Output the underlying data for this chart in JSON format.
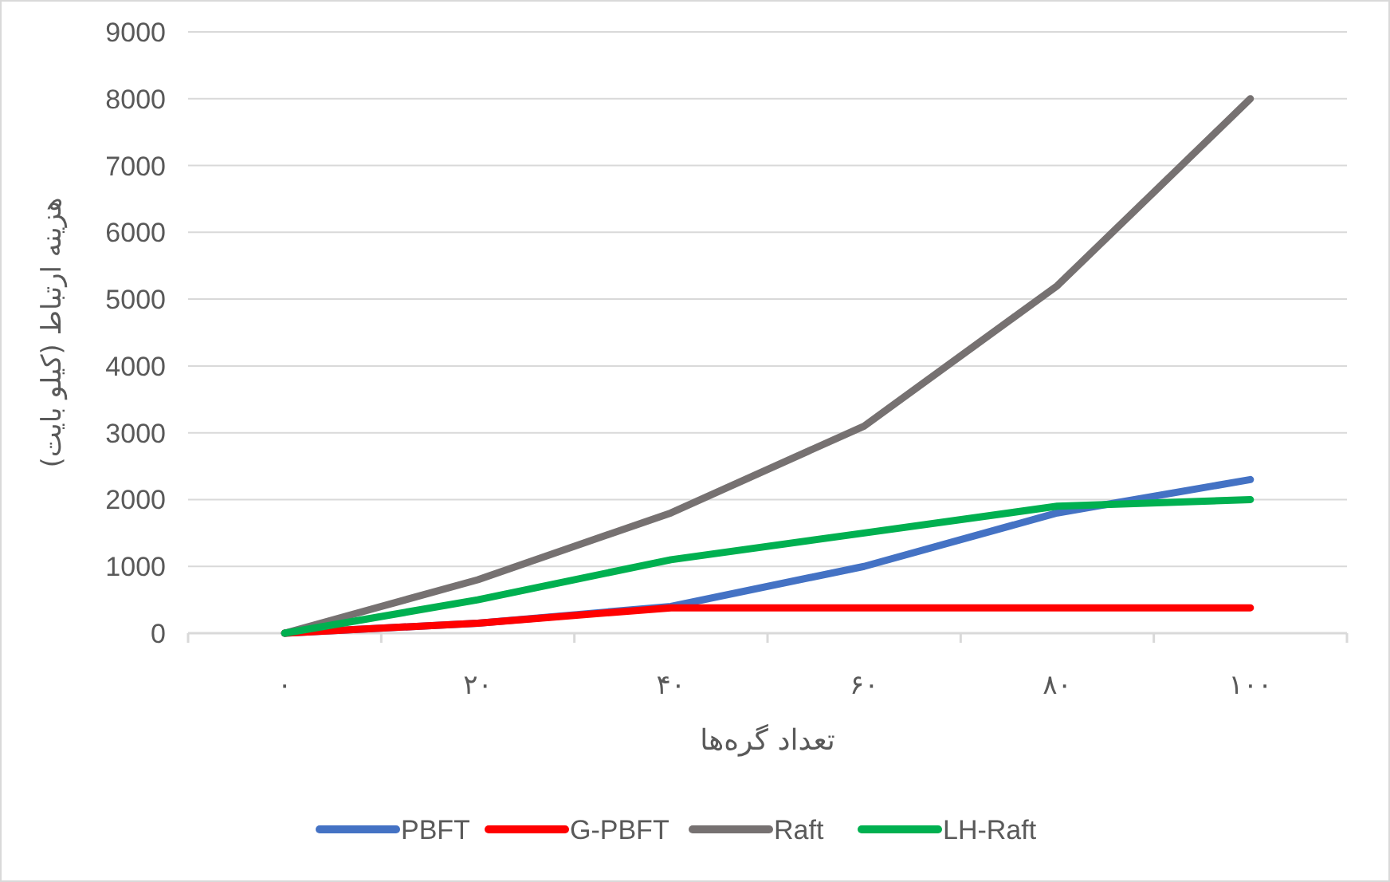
{
  "chart_data": {
    "type": "line",
    "xlabel": "تعداد گره‌ها",
    "ylabel": "هزینه ارتباط (کیلو بایت)",
    "categories": [
      "۰",
      "۲۰",
      "۴۰",
      "۶۰",
      "۸۰",
      "۱۰۰"
    ],
    "series": [
      {
        "name": "PBFT",
        "color": "#4472c4",
        "values": [
          0,
          150,
          400,
          1000,
          1800,
          2300
        ]
      },
      {
        "name": "G-PBFT",
        "color": "#ff0000",
        "values": [
          0,
          150,
          380,
          380,
          380,
          380
        ]
      },
      {
        "name": "Raft",
        "color": "#767171",
        "values": [
          0,
          800,
          1800,
          3100,
          5200,
          8000
        ]
      },
      {
        "name": "LH-Raft",
        "color": "#00b050",
        "values": [
          0,
          500,
          1100,
          1500,
          1900,
          2000
        ]
      }
    ],
    "ylim": [
      0,
      9000
    ],
    "yticks": [
      0,
      1000,
      2000,
      3000,
      4000,
      5000,
      6000,
      7000,
      8000,
      9000
    ],
    "grid": "y",
    "legend": "bottom",
    "marker": "none",
    "line_style": "solid"
  }
}
